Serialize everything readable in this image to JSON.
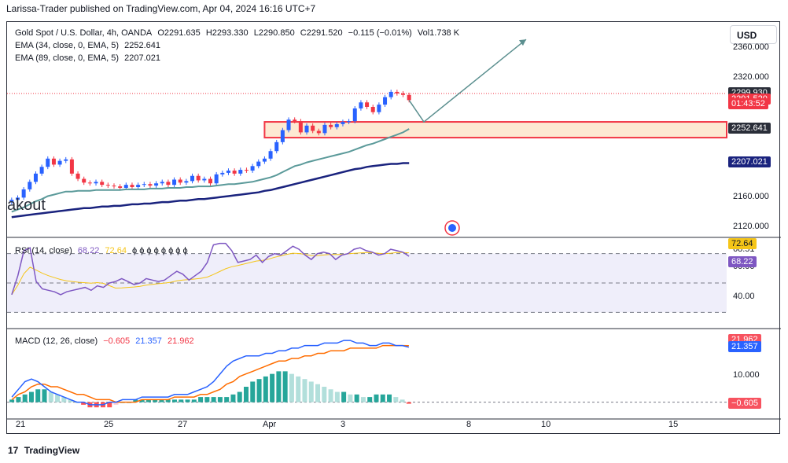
{
  "header": "Larissa-Trader published on TradingView.com, Apr 04, 2024 16:16 UTC+7",
  "currency_button": "USD",
  "legend": {
    "main": {
      "name": "Gold Spot / U.S. Dollar, 4h, OANDA",
      "o": "O2291.635",
      "h": "H2293.330",
      "l": "L2290.850",
      "c": "C2291.520",
      "chg": "−0.115 (−0.01%)",
      "vol": "Vol1.738 K"
    },
    "ema1": {
      "name": "EMA (34, close, 0, EMA, 5)",
      "value": "2252.641"
    },
    "ema2": {
      "name": "EMA (89, close, 0, EMA, 5)",
      "value": "2207.021"
    },
    "rsi": {
      "name": "RSI (14, close)",
      "v1": "68.22",
      "v2": "72.64",
      "rest": "ϕ ϕ ϕ ϕ ϕ ϕ ϕ ϕ"
    },
    "macd": {
      "name": "MACD (12, 26, close)",
      "v1": "−0.605",
      "v2": "21.357",
      "v3": "21.962"
    }
  },
  "overlay_text": "akout",
  "footer": "TradingView",
  "footer_mark": "17",
  "price_axis": {
    "labels": [
      "2360.000",
      "2320.000",
      "2160.000",
      "2120.000"
    ],
    "tags": [
      {
        "text": "2299.930",
        "color": "#2a2e39"
      },
      {
        "text": "2291.520",
        "color": "#f23645"
      },
      {
        "text": "01:43:52",
        "color": "#f23645"
      },
      {
        "text": "2252.641",
        "color": "#2a2e39"
      },
      {
        "text": "2207.021",
        "color": "#1a237e"
      }
    ]
  },
  "rsi_axis": {
    "labels": [
      "68.51",
      "60.00",
      "40.00"
    ],
    "tags": [
      {
        "text": "72.64",
        "color": "#f5c518",
        "textcolor": "#131722"
      },
      {
        "text": "68.22",
        "color": "#7e57c2",
        "textcolor": "#ffffff"
      }
    ]
  },
  "macd_axis": {
    "labels": [
      "10.000"
    ],
    "tags": [
      {
        "text": "21.962",
        "color": "#f7525f",
        "textcolor": "#ffffff"
      },
      {
        "text": "21.357",
        "color": "#2962ff",
        "textcolor": "#ffffff"
      },
      {
        "text": "−0.605",
        "color": "#f7525f",
        "textcolor": "#ffffff"
      }
    ]
  },
  "time_axis": [
    "21",
    "25",
    "27",
    "Apr",
    "3",
    "8",
    "10",
    "15"
  ],
  "chart_data": [
    {
      "type": "candlestick",
      "title": "Gold Spot / U.S. Dollar, 4h, OANDA",
      "ylim": [
        2110,
        2390
      ],
      "close": [
        2158,
        2161,
        2172,
        2182,
        2193,
        2202,
        2213,
        2205,
        2210,
        2212,
        2193,
        2186,
        2181,
        2180,
        2182,
        2178,
        2177,
        2176,
        2174,
        2178,
        2175,
        2178,
        2179,
        2177,
        2180,
        2182,
        2178,
        2185,
        2181,
        2183,
        2190,
        2184,
        2186,
        2180,
        2192,
        2194,
        2197,
        2193,
        2198,
        2197,
        2203,
        2209,
        2213,
        2223,
        2235,
        2251,
        2265,
        2263,
        2248,
        2257,
        2250,
        2247,
        2258,
        2255,
        2259,
        2262,
        2263,
        2280,
        2288,
        2282,
        2275,
        2285,
        2295,
        2302,
        2300,
        2298,
        2291
      ],
      "ema34": [
        2142,
        2145,
        2148,
        2152,
        2156,
        2159,
        2163,
        2165,
        2167,
        2169,
        2169,
        2170,
        2170,
        2170,
        2171,
        2171,
        2171,
        2171,
        2171,
        2172,
        2172,
        2172,
        2172,
        2173,
        2173,
        2173,
        2174,
        2174,
        2174,
        2175,
        2175,
        2176,
        2176,
        2176,
        2177,
        2178,
        2179,
        2179,
        2180,
        2181,
        2182,
        2184,
        2186,
        2188,
        2191,
        2195,
        2199,
        2203,
        2205,
        2208,
        2210,
        2212,
        2214,
        2216,
        2218,
        2220,
        2222,
        2225,
        2228,
        2231,
        2233,
        2236,
        2239,
        2242,
        2245,
        2248,
        2252.641
      ],
      "ema89": [
        2135,
        2136,
        2137,
        2138,
        2139,
        2140,
        2141,
        2142,
        2143,
        2144,
        2145,
        2146,
        2147,
        2147,
        2148,
        2149,
        2149,
        2150,
        2150,
        2151,
        2152,
        2152,
        2153,
        2153,
        2154,
        2155,
        2155,
        2156,
        2157,
        2157,
        2158,
        2159,
        2159,
        2160,
        2161,
        2162,
        2163,
        2164,
        2165,
        2166,
        2167,
        2168,
        2170,
        2171,
        2173,
        2175,
        2177,
        2179,
        2181,
        2183,
        2185,
        2187,
        2189,
        2191,
        2193,
        2195,
        2197,
        2199,
        2200,
        2202,
        2203,
        2204,
        2205,
        2206,
        2206,
        2207,
        2207.021
      ],
      "zone": [
        2241,
        2262
      ],
      "projection": [
        [
          2291,
          2262
        ],
        [
          2262,
          2372
        ]
      ]
    },
    {
      "type": "line",
      "title": "RSI (14, close)",
      "ylim": [
        20,
        80
      ],
      "levels": [
        70,
        50,
        30
      ],
      "rsi": [
        42,
        55,
        72,
        74,
        51,
        46,
        45,
        44,
        42,
        44,
        45,
        46,
        47,
        45,
        48,
        47,
        50,
        51,
        53,
        51,
        49,
        50,
        53,
        52,
        51,
        52,
        55,
        58,
        56,
        52,
        55,
        58,
        64,
        76,
        77,
        77,
        72,
        64,
        65,
        66,
        69,
        64,
        68,
        70,
        69,
        72,
        75,
        73,
        69,
        66,
        70,
        71,
        70,
        66,
        69,
        70,
        73,
        74,
        72,
        71,
        69,
        70,
        73,
        72,
        71,
        68.22
      ]
    },
    {
      "type": "bar",
      "title": "MACD (12, 26, close)",
      "ylim": [
        -5,
        28
      ],
      "histogram": [
        1,
        2,
        3,
        4,
        5,
        5,
        4,
        3,
        2,
        1,
        0,
        -1,
        -2,
        -2,
        -2,
        -2,
        -1,
        0,
        0,
        1,
        1,
        1,
        1,
        1,
        1,
        1,
        1,
        1,
        1,
        2,
        2,
        2,
        2,
        2,
        3,
        4,
        6,
        8,
        9,
        10,
        11,
        12,
        12,
        11,
        10,
        9,
        8,
        7,
        6,
        5,
        4,
        4,
        3,
        3,
        2,
        2,
        3,
        3,
        3,
        2,
        1,
        -0.605
      ],
      "macd": [
        2,
        5,
        8,
        9,
        8,
        6,
        4,
        3,
        2,
        1,
        0,
        0,
        -1,
        -1,
        -1,
        0,
        0,
        1,
        1,
        1,
        2,
        2,
        2,
        2,
        2,
        3,
        3,
        3,
        4,
        5,
        6,
        8,
        11,
        14,
        16,
        17,
        18,
        18,
        18,
        19,
        19,
        20,
        20,
        21,
        21,
        22,
        22,
        22,
        23,
        23,
        23,
        24,
        24,
        23,
        23,
        22,
        22,
        23,
        23,
        22,
        22,
        21.357
      ],
      "signal": [
        1,
        3,
        4,
        6,
        7,
        7,
        6,
        6,
        5,
        4,
        3,
        3,
        2,
        1,
        1,
        1,
        0,
        0,
        0,
        0,
        1,
        1,
        1,
        1,
        1,
        2,
        2,
        2,
        2,
        3,
        3,
        4,
        5,
        7,
        8,
        10,
        11,
        12,
        13,
        14,
        15,
        16,
        16,
        17,
        17,
        18,
        18,
        19,
        19,
        20,
        20,
        20,
        21,
        21,
        21,
        21,
        21,
        22,
        22,
        22,
        22,
        21.962
      ]
    }
  ]
}
